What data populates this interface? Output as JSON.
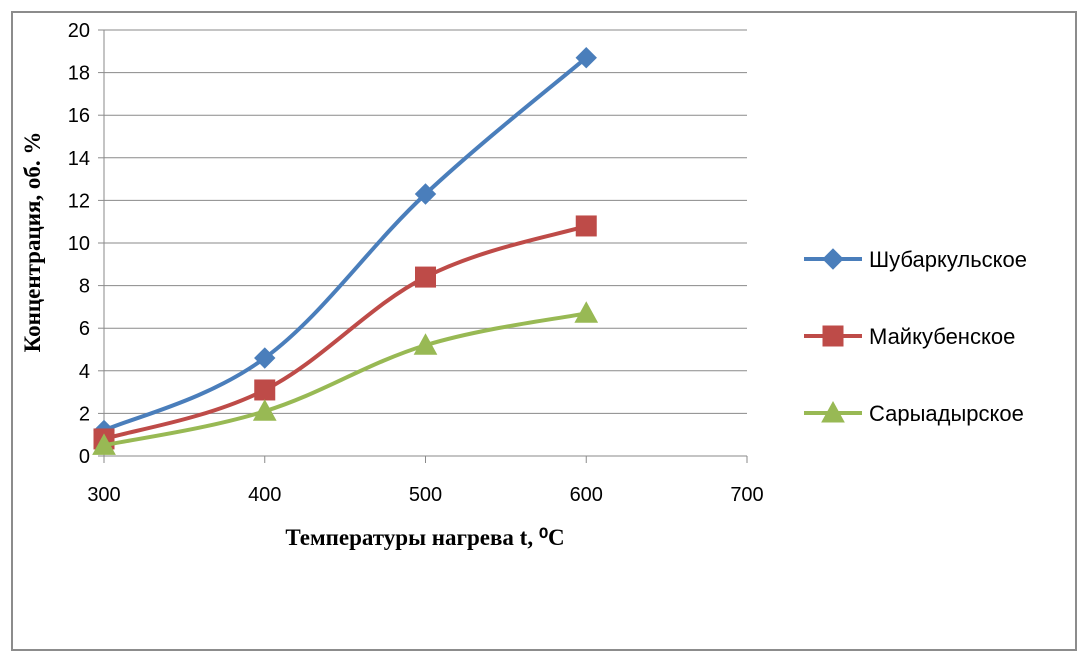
{
  "chart_data": {
    "type": "line",
    "title": "",
    "xlabel": "Температуры нагрева t, ⁰С",
    "ylabel": "Концентрация, об. %",
    "xlim": [
      300,
      700
    ],
    "ylim": [
      0,
      20
    ],
    "xticks": [
      300,
      400,
      500,
      600,
      700
    ],
    "yticks": [
      0,
      2,
      4,
      6,
      8,
      10,
      12,
      14,
      16,
      18,
      20
    ],
    "grid": "horizontal",
    "legend_position": "right",
    "smooth": true,
    "series": [
      {
        "name": "Шубаркульское",
        "color": "#4a7ebb",
        "marker": "diamond",
        "x": [
          300,
          400,
          500,
          600
        ],
        "y": [
          1.2,
          4.6,
          12.3,
          18.7
        ]
      },
      {
        "name": "Майкубенское",
        "color": "#be4b48",
        "marker": "square",
        "x": [
          300,
          400,
          500,
          600
        ],
        "y": [
          0.8,
          3.1,
          8.4,
          10.8
        ]
      },
      {
        "name": "Сарыадырское",
        "color": "#98b954",
        "marker": "triangle",
        "x": [
          300,
          400,
          500,
          600
        ],
        "y": [
          0.5,
          2.1,
          5.2,
          6.7
        ]
      }
    ]
  }
}
